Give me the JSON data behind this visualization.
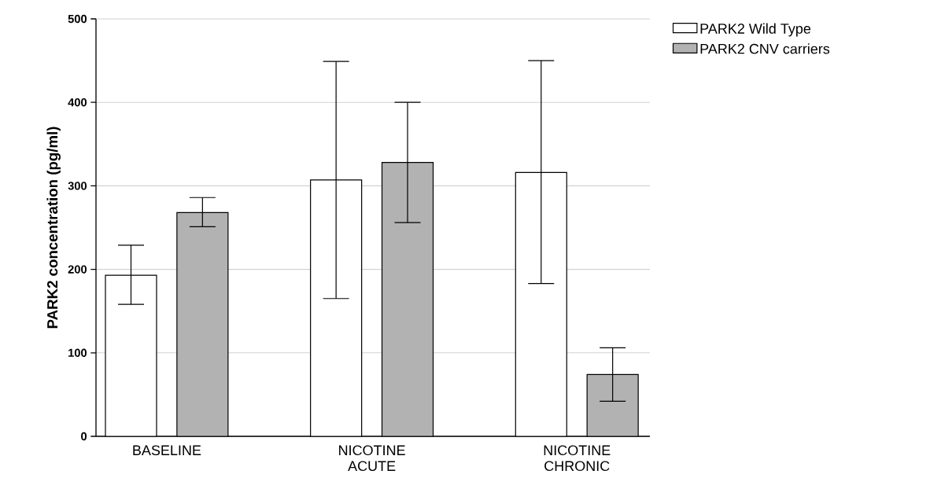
{
  "chart_data": {
    "type": "bar",
    "ylabel": "PARK2 concentration (pg/ml)",
    "categories": [
      "BASELINE",
      "NICOTINE ACUTE",
      "NICOTINE CHRONIC"
    ],
    "series": [
      {
        "name": "PARK2 Wild Type",
        "color": "#ffffff",
        "values": [
          193,
          307,
          316
        ],
        "errors": [
          [
            158,
            229
          ],
          [
            165,
            449
          ],
          [
            183,
            450
          ]
        ]
      },
      {
        "name": "PARK2 CNV carriers",
        "color": "#b2b2b2",
        "values": [
          268,
          328,
          74
        ],
        "errors": [
          [
            251,
            286
          ],
          [
            256,
            400
          ],
          [
            42,
            106
          ]
        ]
      }
    ],
    "ylim": [
      0,
      500
    ],
    "yticks": [
      0,
      100,
      200,
      300,
      400,
      500
    ],
    "grid": "y",
    "legend": "top right"
  }
}
